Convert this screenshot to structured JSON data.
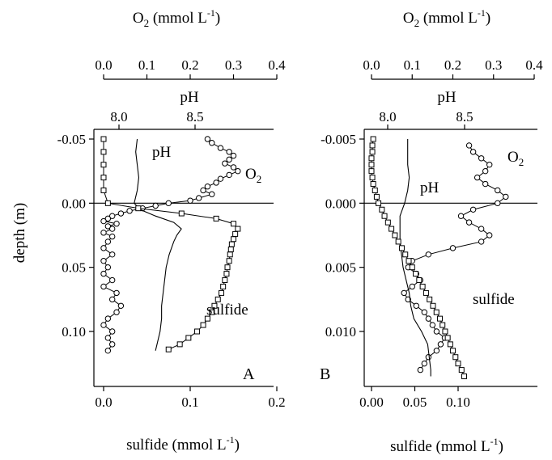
{
  "chart_data": [
    {
      "type": "line",
      "panel_label": "A",
      "x_top_label": "O",
      "x_top_label_sub": "2",
      "x_top_label_rest": " (mmol L",
      "x_top_label_sup": "-1",
      "x_top_label_close": ")",
      "x_top_ticks": [
        "0.0",
        "0.1",
        "0.2",
        "0.3",
        "0.4"
      ],
      "x_top_lim": [
        0,
        0.4
      ],
      "ph_label": "pH",
      "ph_ticks": [
        "8.0",
        "8.5"
      ],
      "ph_lim": [
        7.79,
        8.73
      ],
      "x_bottom_label": "sulfide (mmol L",
      "x_bottom_label_sup": "-1",
      "x_bottom_label_close": ")",
      "x_bottom_ticks": [
        "0.0",
        "0.1",
        "0.2"
      ],
      "x_bottom_lim": [
        -0.02,
        0.2
      ],
      "ylabel": "depth (m)",
      "y_ticks": [
        "-0.05",
        "0.00",
        "0.05",
        "0.10"
      ],
      "y_lim": [
        -0.05,
        0.125
      ],
      "annotations": {
        "ph": "pH",
        "o2": "O",
        "o2_sub": "2",
        "sulfide": "sulfide"
      },
      "series": [
        {
          "name": "O2",
          "axis": "top",
          "depth": [
            -0.05,
            -0.047,
            -0.043,
            -0.04,
            -0.037,
            -0.034,
            -0.031,
            -0.028,
            -0.025,
            -0.022,
            -0.019,
            -0.016,
            -0.013,
            -0.01,
            -0.007,
            -0.004,
            -0.002,
            0.0,
            0.002,
            0.004,
            0.006,
            0.008,
            0.01,
            0.012,
            0.014,
            0.016,
            0.018,
            0.02,
            0.023,
            0.026,
            0.03,
            0.035,
            0.04,
            0.045,
            0.05,
            0.055,
            0.06,
            0.065,
            0.07,
            0.075,
            0.08,
            0.085,
            0.09,
            0.095,
            0.1,
            0.105,
            0.11,
            0.115
          ],
          "values": [
            0.24,
            0.25,
            0.27,
            0.29,
            0.3,
            0.29,
            0.28,
            0.3,
            0.31,
            0.29,
            0.27,
            0.26,
            0.24,
            0.23,
            0.25,
            0.22,
            0.2,
            0.15,
            0.12,
            0.09,
            0.06,
            0.04,
            0.02,
            0.01,
            0.0,
            0.03,
            0.01,
            0.02,
            0.0,
            0.02,
            0.01,
            0.0,
            0.02,
            0.0,
            0.01,
            0.0,
            0.02,
            0.0,
            0.03,
            0.02,
            0.04,
            0.03,
            0.01,
            0.0,
            0.02,
            0.01,
            0.02,
            0.01
          ]
        },
        {
          "name": "pH",
          "axis": "ph",
          "depth": [
            -0.05,
            -0.04,
            -0.03,
            -0.02,
            -0.01,
            0.0,
            0.005,
            0.01,
            0.015,
            0.02,
            0.025,
            0.03,
            0.04,
            0.05,
            0.06,
            0.07,
            0.08,
            0.09,
            0.1,
            0.11,
            0.115
          ],
          "values": [
            8.12,
            8.11,
            8.12,
            8.13,
            8.12,
            8.1,
            8.14,
            8.24,
            8.36,
            8.41,
            8.38,
            8.36,
            8.33,
            8.31,
            8.3,
            8.29,
            8.28,
            8.28,
            8.27,
            8.25,
            8.24
          ]
        },
        {
          "name": "sulfide",
          "axis": "bottom",
          "depth": [
            -0.05,
            -0.04,
            -0.03,
            -0.02,
            -0.01,
            0.0,
            0.004,
            0.008,
            0.012,
            0.016,
            0.02,
            0.024,
            0.028,
            0.032,
            0.036,
            0.04,
            0.045,
            0.05,
            0.055,
            0.06,
            0.065,
            0.07,
            0.075,
            0.08,
            0.085,
            0.09,
            0.095,
            0.1,
            0.105,
            0.11,
            0.114
          ],
          "values": [
            0.0,
            0.0,
            0.0,
            0.0,
            0.0,
            0.005,
            0.04,
            0.09,
            0.13,
            0.15,
            0.155,
            0.152,
            0.15,
            0.148,
            0.147,
            0.146,
            0.145,
            0.143,
            0.142,
            0.14,
            0.138,
            0.136,
            0.132,
            0.128,
            0.125,
            0.12,
            0.115,
            0.108,
            0.098,
            0.088,
            0.075
          ]
        }
      ]
    },
    {
      "type": "line",
      "panel_label": "B",
      "x_top_label": "O",
      "x_top_label_sub": "2",
      "x_top_label_rest": " (mmol L",
      "x_top_label_sup": "-1",
      "x_top_label_close": ")",
      "x_top_ticks": [
        "0.0",
        "0.1",
        "0.2",
        "0.3",
        "0.4"
      ],
      "x_top_lim": [
        0,
        0.4
      ],
      "ph_label": "pH",
      "ph_ticks": [
        "8.0",
        "8.5"
      ],
      "ph_lim": [
        7.79,
        8.73
      ],
      "x_bottom_label": "sulfide (mmol L",
      "x_bottom_label_sup": "-1",
      "x_bottom_label_close": ")",
      "x_bottom_ticks": [
        "0.00",
        "0.05",
        "0.10"
      ],
      "x_bottom_lim": [
        -0.006,
        0.12
      ],
      "ylabel": "",
      "y_ticks": [
        "-0.005",
        "0.000",
        "0.005",
        "0.010"
      ],
      "y_lim": [
        -0.005,
        0.0135
      ],
      "annotations": {
        "ph": "pH",
        "o2": "O",
        "o2_sub": "2",
        "sulfide": "sulfide"
      },
      "series": [
        {
          "name": "O2",
          "axis": "top",
          "depth": [
            -0.0045,
            -0.004,
            -0.0035,
            -0.003,
            -0.0025,
            -0.002,
            -0.0015,
            -0.001,
            -0.0005,
            0.0,
            0.0005,
            0.001,
            0.0015,
            0.002,
            0.0025,
            0.003,
            0.0035,
            0.004,
            0.0045,
            0.005,
            0.0055,
            0.006,
            0.0065,
            0.007,
            0.0075,
            0.008,
            0.0085,
            0.009,
            0.0095,
            0.01,
            0.0105,
            0.011,
            0.0115,
            0.012,
            0.0125,
            0.013
          ],
          "values": [
            0.24,
            0.25,
            0.27,
            0.29,
            0.28,
            0.26,
            0.28,
            0.31,
            0.33,
            0.31,
            0.25,
            0.22,
            0.24,
            0.27,
            0.29,
            0.27,
            0.2,
            0.14,
            0.1,
            0.09,
            0.11,
            0.12,
            0.1,
            0.08,
            0.09,
            0.11,
            0.13,
            0.14,
            0.15,
            0.16,
            0.18,
            0.17,
            0.16,
            0.14,
            0.13,
            0.12
          ]
        },
        {
          "name": "pH",
          "axis": "ph",
          "depth": [
            -0.005,
            -0.004,
            -0.003,
            -0.002,
            -0.001,
            0.0,
            0.001,
            0.002,
            0.003,
            0.004,
            0.005,
            0.006,
            0.007,
            0.008,
            0.009,
            0.01,
            0.011,
            0.012,
            0.013,
            0.0135
          ],
          "values": [
            8.13,
            8.13,
            8.13,
            8.14,
            8.13,
            8.11,
            8.08,
            8.08,
            8.08,
            8.09,
            8.1,
            8.12,
            8.14,
            8.15,
            8.17,
            8.22,
            8.26,
            8.27,
            8.28,
            8.28
          ]
        },
        {
          "name": "sulfide",
          "axis": "bottom",
          "depth": [
            -0.005,
            -0.0045,
            -0.004,
            -0.0035,
            -0.003,
            -0.0025,
            -0.002,
            -0.0015,
            -0.001,
            -0.0005,
            0.0,
            0.0005,
            0.001,
            0.0015,
            0.002,
            0.0025,
            0.003,
            0.0035,
            0.004,
            0.0045,
            0.005,
            0.0055,
            0.006,
            0.0065,
            0.007,
            0.0075,
            0.008,
            0.0085,
            0.009,
            0.0095,
            0.01,
            0.0105,
            0.011,
            0.0115,
            0.012,
            0.0125,
            0.013,
            0.0135
          ],
          "values": [
            0.002,
            0.001,
            0.001,
            0.0,
            0.0,
            0.0,
            0.001,
            0.002,
            0.004,
            0.006,
            0.008,
            0.012,
            0.015,
            0.019,
            0.023,
            0.027,
            0.031,
            0.035,
            0.039,
            0.043,
            0.047,
            0.051,
            0.055,
            0.059,
            0.063,
            0.067,
            0.071,
            0.075,
            0.079,
            0.082,
            0.085,
            0.088,
            0.091,
            0.094,
            0.097,
            0.1,
            0.104,
            0.107
          ]
        }
      ]
    }
  ]
}
